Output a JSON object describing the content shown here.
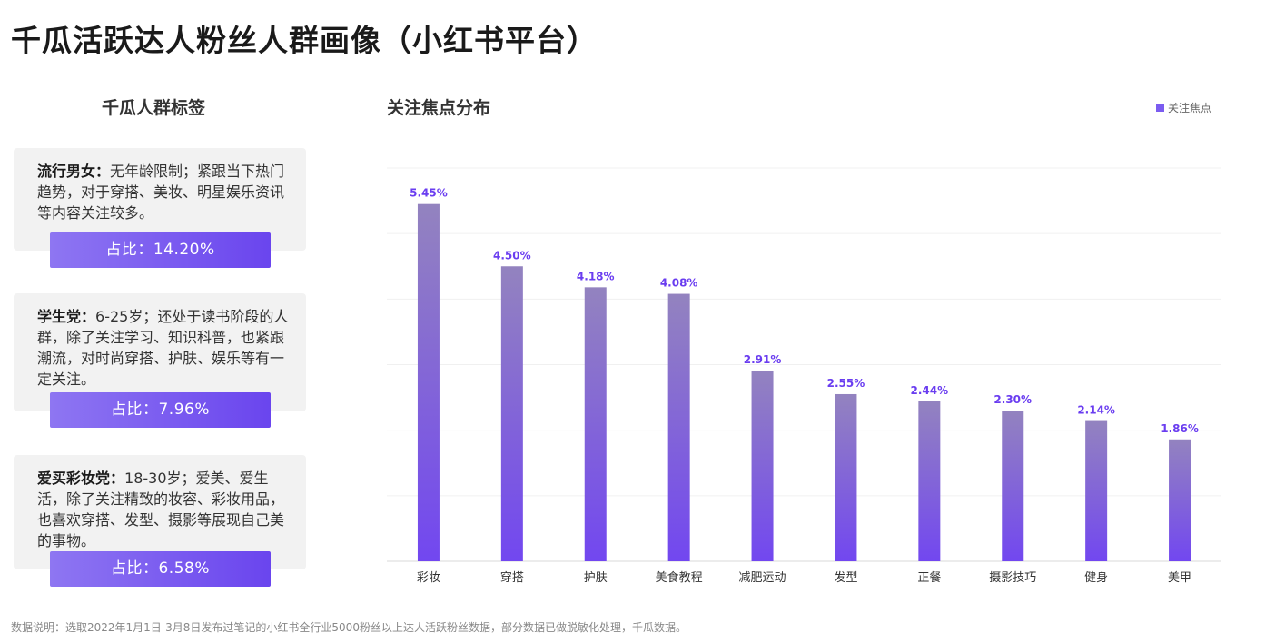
{
  "title": "千瓜活跃达人粉丝人群画像（小红书平台）",
  "left_panel": {
    "title": "千瓜人群标签",
    "cards": [
      {
        "name": "流行男女：",
        "desc": "无年龄限制；紧跟当下热门趋势，对于穿搭、美妆、明星娱乐资讯等内容关注较多。",
        "share": "占比：14.20%"
      },
      {
        "name": "学生党：",
        "desc": "6-25岁；还处于读书阶段的人群，除了关注学习、知识科普，也紧跟潮流，对时尚穿搭、护肤、娱乐等有一定关注。",
        "share": "占比：7.96%"
      },
      {
        "name": "爱买彩妆党：",
        "desc": "18-30岁；爱美、爱生活，除了关注精致的妆容、彩妆用品，也喜欢穿搭、发型、摄影等展现自己美的事物。",
        "share": "占比：6.58%"
      }
    ]
  },
  "chart_title": "关注焦点分布",
  "chart_data": {
    "type": "bar",
    "categories": [
      "彩妆",
      "穿搭",
      "护肤",
      "美食教程",
      "减肥运动",
      "发型",
      "正餐",
      "摄影技巧",
      "健身",
      "美甲"
    ],
    "series": [
      {
        "name": "关注焦点",
        "values": [
          5.45,
          4.5,
          4.18,
          4.08,
          2.91,
          2.55,
          2.44,
          2.3,
          2.14,
          1.86
        ]
      }
    ],
    "data_labels": [
      "5.45%",
      "4.50%",
      "4.18%",
      "4.08%",
      "2.91%",
      "2.55%",
      "2.44%",
      "2.30%",
      "2.14%",
      "1.86%"
    ],
    "ylim": [
      0,
      6
    ],
    "grid": true,
    "legend_position": "top-right",
    "bar_gradient": [
      "#9383bf",
      "#7247f0"
    ],
    "label_color": "#6a3df0"
  },
  "footnote": "数据说明：选取2022年1月1日-3月8日发布过笔记的小红书全行业5000粉丝以上达人活跃粉丝数据，部分数据已做脱敏化处理，千瓜数据。"
}
